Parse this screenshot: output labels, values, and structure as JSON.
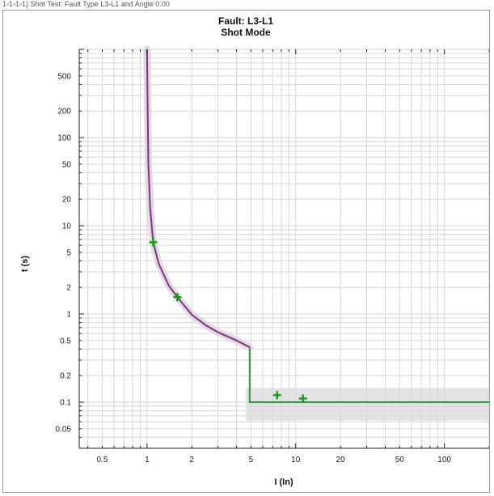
{
  "caption": "1-1-1-1) Shot Test: Fault Type L3-L1 and Angle 0.00",
  "chart_data": {
    "type": "line",
    "title": "Fault: L3-L1",
    "subtitle": "Shot Mode",
    "xlabel": "I (In)",
    "ylabel": "t (s)",
    "xscale": "log",
    "yscale": "log",
    "xlim": [
      0.35,
      200
    ],
    "ylim": [
      0.03,
      1000
    ],
    "xticks": [
      0.5,
      1,
      2,
      5,
      10,
      20,
      50,
      100
    ],
    "xticklabels": [
      "0.5",
      "1",
      "2",
      "5",
      "10",
      "20",
      "50",
      "100"
    ],
    "yticks": [
      0.05,
      0.1,
      0.2,
      0.5,
      1,
      2,
      5,
      10,
      20,
      50,
      100,
      200,
      500
    ],
    "yticklabels": [
      "0.05",
      "0.1",
      "0.2",
      "0.5",
      "1",
      "2",
      "5",
      "10",
      "20",
      "50",
      "100",
      "200",
      "500"
    ],
    "grid": true,
    "colors": {
      "curve": "#8b2a8f",
      "definite_time": "#2e9a3a",
      "marker": "#14a314",
      "tolerance_band": "#d9d9d9",
      "grid": "#d6d6d6",
      "axis": "#222222"
    },
    "series": [
      {
        "kind": "inverse-time curve",
        "x": [
          1.0,
          1.02,
          1.05,
          1.1,
          1.2,
          1.4,
          1.6,
          2.0,
          2.5,
          3.0,
          4.0,
          4.9
        ],
        "y": [
          1000,
          55,
          16,
          6.5,
          3.7,
          2.1,
          1.55,
          0.98,
          0.74,
          0.62,
          0.5,
          0.42
        ]
      },
      {
        "kind": "definite-time step",
        "x": [
          4.9,
          4.9,
          5.0,
          200
        ],
        "y": [
          0.42,
          0.1,
          0.1,
          0.1
        ]
      }
    ],
    "test_points": [
      {
        "x": 1.1,
        "y": 6.5
      },
      {
        "x": 1.6,
        "y": 1.55
      },
      {
        "x": 7.5,
        "y": 0.12
      },
      {
        "x": 11.2,
        "y": 0.11
      }
    ]
  }
}
